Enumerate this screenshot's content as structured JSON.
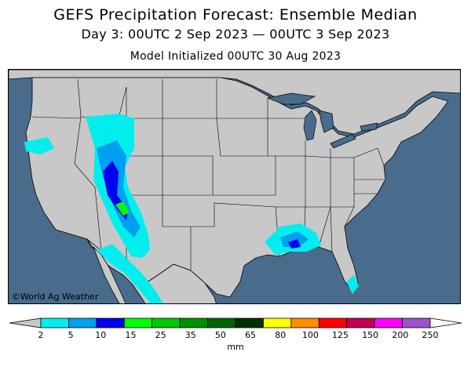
{
  "header": {
    "title": "GEFS Precipitation Forecast: Ensemble Median",
    "subtitle": "Day 3: 00UTC 2 Sep 2023 — 00UTC 3 Sep 2023",
    "init": "Model Initialized 00UTC 30 Aug 2023"
  },
  "map": {
    "credit": "©World Ag Weather",
    "colors": {
      "land": "#c8c8c8",
      "water": "#4a6c8c",
      "borders": "#000000"
    }
  },
  "legend": {
    "unit": "mm",
    "thresholds": [
      "2",
      "5",
      "10",
      "15",
      "25",
      "35",
      "50",
      "65",
      "80",
      "100",
      "125",
      "150",
      "200",
      "250"
    ],
    "colors": [
      "#00eeee",
      "#00a0f0",
      "#0000f0",
      "#00ff00",
      "#00c800",
      "#009000",
      "#006400",
      "#003000",
      "#ffff00",
      "#ff8c00",
      "#ff0000",
      "#c00050",
      "#ff00ff",
      "#9955c8"
    ],
    "under_color": "#c8c8c8",
    "over_color": "#ffffff"
  }
}
